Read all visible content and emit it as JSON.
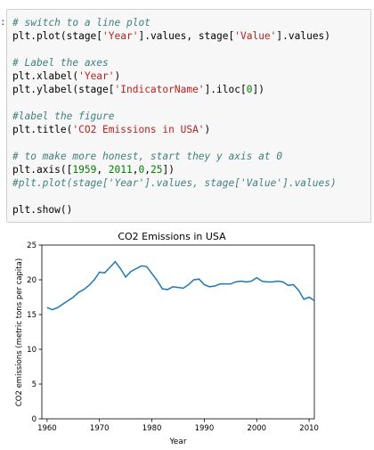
{
  "cell": {
    "prompt": ":",
    "lines": [
      [
        {
          "t": "cm",
          "v": "# switch to a line plot"
        }
      ],
      [
        {
          "t": "",
          "v": "plt.plot(stage["
        },
        {
          "t": "st",
          "v": "'Year'"
        },
        {
          "t": "",
          "v": "].values, stage["
        },
        {
          "t": "st",
          "v": "'Value'"
        },
        {
          "t": "",
          "v": "].values)"
        }
      ],
      [],
      [
        {
          "t": "cm",
          "v": "# Label the axes"
        }
      ],
      [
        {
          "t": "",
          "v": "plt.xlabel("
        },
        {
          "t": "st",
          "v": "'Year'"
        },
        {
          "t": "",
          "v": ")"
        }
      ],
      [
        {
          "t": "",
          "v": "plt.ylabel(stage["
        },
        {
          "t": "st",
          "v": "'IndicatorName'"
        },
        {
          "t": "",
          "v": "].iloc["
        },
        {
          "t": "nm",
          "v": "0"
        },
        {
          "t": "",
          "v": "])"
        }
      ],
      [],
      [
        {
          "t": "cm",
          "v": "#label the figure"
        }
      ],
      [
        {
          "t": "",
          "v": "plt.title("
        },
        {
          "t": "st",
          "v": "'CO2 Emissions in USA'"
        },
        {
          "t": "",
          "v": ")"
        }
      ],
      [],
      [
        {
          "t": "cm",
          "v": "# to make more honest, start they y axis at 0"
        }
      ],
      [
        {
          "t": "",
          "v": "plt.axis(["
        },
        {
          "t": "nm",
          "v": "1959"
        },
        {
          "t": "",
          "v": ", "
        },
        {
          "t": "nm",
          "v": "2011"
        },
        {
          "t": "",
          "v": ","
        },
        {
          "t": "nm",
          "v": "0"
        },
        {
          "t": "",
          "v": ","
        },
        {
          "t": "nm",
          "v": "25"
        },
        {
          "t": "",
          "v": "])"
        }
      ],
      [
        {
          "t": "cm",
          "v": "#plt.plot(stage['Year'].values, stage['Value'].values)"
        }
      ],
      [],
      [
        {
          "t": "",
          "v": "plt.show()"
        }
      ]
    ]
  },
  "chart_data": {
    "type": "line",
    "title": "CO2 Emissions in USA",
    "xlabel": "Year",
    "ylabel": "CO2 emissions (metric tons per capita)",
    "xlim": [
      1959,
      2011
    ],
    "ylim": [
      0,
      25
    ],
    "xticks": [
      1960,
      1970,
      1980,
      1990,
      2000,
      2010
    ],
    "yticks": [
      0,
      5,
      10,
      15,
      20,
      25
    ],
    "line_color": "#1f77b4",
    "series": [
      {
        "x": [
          1960,
          1961,
          1962,
          1963,
          1964,
          1965,
          1966,
          1967,
          1968,
          1969,
          1970,
          1971,
          1972,
          1973,
          1974,
          1975,
          1976,
          1977,
          1978,
          1979,
          1980,
          1981,
          1982,
          1983,
          1984,
          1985,
          1986,
          1987,
          1988,
          1989,
          1990,
          1991,
          1992,
          1993,
          1994,
          1995,
          1996,
          1997,
          1998,
          1999,
          2000,
          2001,
          2002,
          2003,
          2004,
          2005,
          2006,
          2007,
          2008,
          2009,
          2010,
          2011
        ],
        "y": [
          16.0,
          15.7,
          16.0,
          16.5,
          17.0,
          17.5,
          18.2,
          18.6,
          19.2,
          20.0,
          21.1,
          21.0,
          21.8,
          22.6,
          21.6,
          20.4,
          21.2,
          21.6,
          22.0,
          21.9,
          20.9,
          19.9,
          18.7,
          18.6,
          19.0,
          18.9,
          18.8,
          19.3,
          20.0,
          20.1,
          19.3,
          19.0,
          19.1,
          19.4,
          19.4,
          19.4,
          19.7,
          19.8,
          19.7,
          19.8,
          20.3,
          19.8,
          19.7,
          19.7,
          19.8,
          19.7,
          19.2,
          19.3,
          18.5,
          17.2,
          17.5,
          17.0
        ]
      }
    ]
  }
}
